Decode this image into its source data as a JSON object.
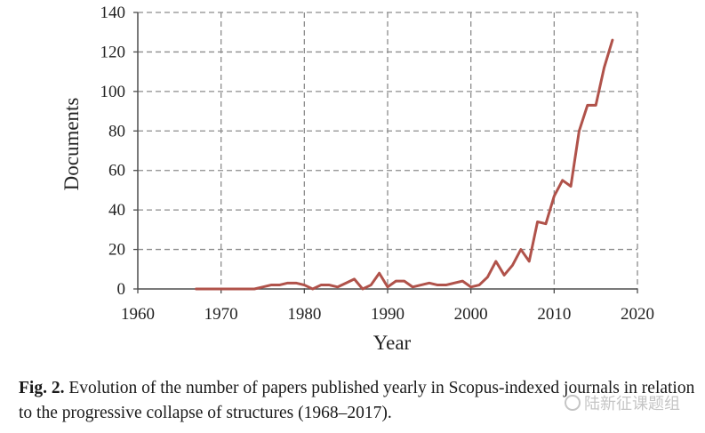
{
  "chart_data": {
    "type": "line",
    "title": "",
    "xlabel": "Year",
    "ylabel": "Documents",
    "xlim": [
      1960,
      2020
    ],
    "ylim": [
      0,
      140
    ],
    "xticks": [
      1960,
      1970,
      1980,
      1990,
      2000,
      2010,
      2020
    ],
    "yticks": [
      0,
      20,
      40,
      60,
      80,
      100,
      120,
      140
    ],
    "grid": true,
    "legend": "none",
    "series": [
      {
        "color": "#B0524A",
        "x": [
          1967,
          1968,
          1969,
          1970,
          1971,
          1972,
          1973,
          1974,
          1975,
          1976,
          1977,
          1978,
          1979,
          1980,
          1981,
          1982,
          1983,
          1984,
          1985,
          1986,
          1987,
          1988,
          1989,
          1990,
          1991,
          1992,
          1993,
          1994,
          1995,
          1996,
          1997,
          1998,
          1999,
          2000,
          2001,
          2002,
          2003,
          2004,
          2005,
          2006,
          2007,
          2008,
          2009,
          2010,
          2011,
          2012,
          2013,
          2014,
          2015,
          2016,
          2017
        ],
        "y": [
          0,
          0,
          0,
          0,
          0,
          0,
          0,
          0,
          1,
          2,
          2,
          3,
          3,
          2,
          0,
          2,
          2,
          1,
          3,
          5,
          0,
          2,
          8,
          1,
          4,
          4,
          1,
          2,
          3,
          2,
          2,
          3,
          4,
          1,
          2,
          6,
          14,
          7,
          12,
          20,
          14,
          34,
          33,
          47,
          55,
          52,
          80,
          93,
          93,
          112,
          126
        ]
      }
    ]
  },
  "caption": {
    "label": "Fig. 2.",
    "text": " Evolution of the number of papers published yearly in Scopus-indexed journals in relation to the progressive collapse of structures (1968–2017)."
  },
  "watermark": {
    "text": "陆新征课题组"
  }
}
